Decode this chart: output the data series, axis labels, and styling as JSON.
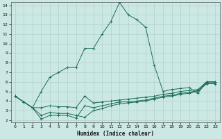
{
  "xlabel": "Humidex (Indice chaleur)",
  "bg_color": "#cce8e4",
  "grid_color": "#b0d0cc",
  "line_color": "#1a6b5a",
  "xlim": [
    -0.5,
    23.5
  ],
  "ylim": [
    1.8,
    14.3
  ],
  "yticks": [
    2,
    3,
    4,
    5,
    6,
    7,
    8,
    9,
    10,
    11,
    12,
    13,
    14
  ],
  "xticks": [
    0,
    1,
    2,
    3,
    4,
    5,
    6,
    7,
    8,
    9,
    10,
    11,
    12,
    13,
    14,
    15,
    16,
    17,
    18,
    19,
    20,
    21,
    22,
    23
  ],
  "s1_x": [
    0,
    1,
    2,
    3,
    4,
    5,
    6,
    7,
    8,
    9,
    10,
    11,
    12,
    13,
    14,
    15,
    16,
    17,
    18,
    19,
    20,
    21,
    22,
    23
  ],
  "s1_y": [
    4.5,
    3.9,
    3.3,
    5.0,
    6.5,
    7.0,
    7.5,
    7.5,
    9.5,
    9.5,
    11.0,
    12.3,
    14.3,
    13.0,
    12.5,
    11.7,
    7.7,
    5.0,
    5.2,
    5.3,
    5.4,
    4.8,
    6.0,
    6.0
  ],
  "s2_x": [
    0,
    1,
    2,
    3,
    4,
    5,
    6,
    7,
    8,
    9,
    10,
    11,
    12,
    13,
    14,
    15,
    16,
    17,
    18,
    19,
    20,
    21,
    22,
    23
  ],
  "s2_y": [
    4.5,
    3.9,
    3.3,
    3.3,
    3.5,
    3.4,
    3.4,
    3.3,
    4.5,
    3.8,
    3.9,
    4.0,
    4.1,
    4.2,
    4.3,
    4.4,
    4.5,
    4.7,
    4.8,
    5.0,
    5.1,
    5.2,
    6.0,
    6.0
  ],
  "s3_x": [
    0,
    1,
    2,
    3,
    4,
    5,
    6,
    7,
    8,
    9,
    10,
    11,
    12,
    13,
    14,
    15,
    16,
    17,
    18,
    19,
    20,
    21,
    22,
    23
  ],
  "s3_y": [
    4.5,
    3.9,
    3.3,
    2.5,
    2.8,
    2.7,
    2.7,
    2.5,
    2.3,
    3.0,
    3.2,
    3.5,
    3.7,
    3.8,
    3.9,
    4.0,
    4.2,
    4.4,
    4.5,
    4.7,
    4.8,
    5.0,
    5.8,
    5.8
  ],
  "s4_x": [
    0,
    1,
    2,
    3,
    4,
    5,
    6,
    7,
    8,
    9,
    10,
    11,
    12,
    13,
    14,
    15,
    16,
    17,
    18,
    19,
    20,
    21,
    22,
    23
  ],
  "s4_y": [
    4.5,
    3.9,
    3.3,
    2.1,
    2.5,
    2.5,
    2.5,
    2.2,
    3.5,
    3.3,
    3.5,
    3.7,
    3.9,
    3.9,
    4.0,
    4.1,
    4.3,
    4.5,
    4.6,
    4.8,
    4.9,
    5.1,
    5.9,
    5.9
  ]
}
